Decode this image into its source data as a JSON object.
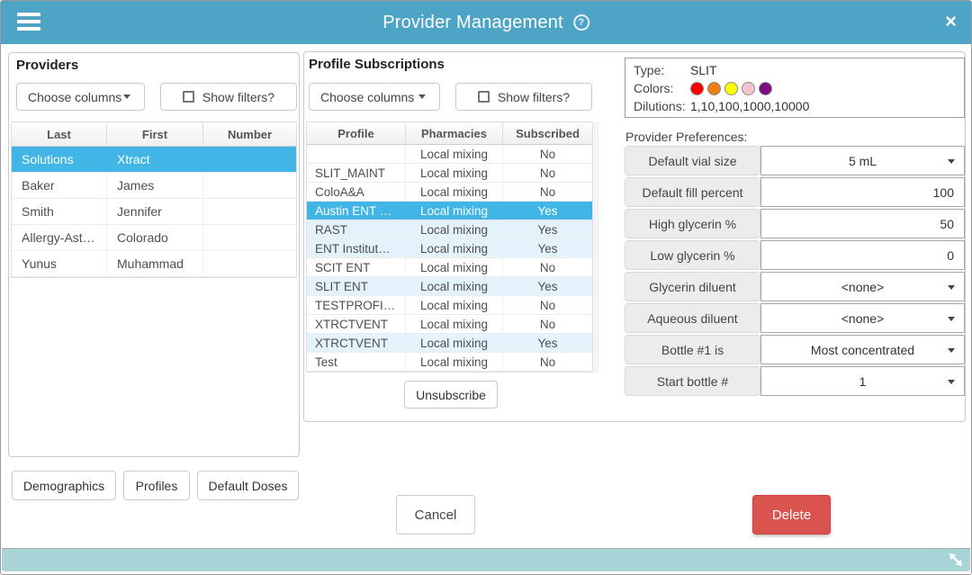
{
  "header": {
    "title": "Provider Management",
    "help_glyph": "?",
    "close_glyph": "×"
  },
  "providers": {
    "title": "Providers",
    "choose_columns_label": "Choose columns",
    "show_filters_label": "Show filters?",
    "columns": [
      {
        "label": "Last"
      },
      {
        "label": "First"
      },
      {
        "label": "Number"
      }
    ],
    "rows": [
      {
        "last": "Solutions",
        "first": "Xtract",
        "number": "",
        "selected": true
      },
      {
        "last": "Baker",
        "first": "James",
        "number": ""
      },
      {
        "last": "Smith",
        "first": "Jennifer",
        "number": ""
      },
      {
        "last": "Allergy-Ast…",
        "first": "Colorado",
        "number": ""
      },
      {
        "last": "Yunus",
        "first": "Muhammad",
        "number": ""
      }
    ],
    "action_buttons": {
      "demographics": "Demographics",
      "profiles": "Profiles",
      "default_doses": "Default Doses"
    }
  },
  "subscriptions": {
    "title": "Profile Subscriptions",
    "choose_columns_label": "Choose columns",
    "show_filters_label": "Show filters?",
    "columns": [
      {
        "label": "Profile"
      },
      {
        "label": "Pharmacies"
      },
      {
        "label": "Subscribed"
      }
    ],
    "rows": [
      {
        "profile": "",
        "pharmacies": "Local mixing",
        "subscribed": "No"
      },
      {
        "profile": "SLIT_MAINT",
        "pharmacies": "Local mixing",
        "subscribed": "No"
      },
      {
        "profile": "ColoA&A",
        "pharmacies": "Local mixing",
        "subscribed": "No"
      },
      {
        "profile": "Austin ENT …",
        "pharmacies": "Local mixing",
        "subscribed": "Yes",
        "selected": true
      },
      {
        "profile": "RAST",
        "pharmacies": "Local mixing",
        "subscribed": "Yes"
      },
      {
        "profile": "ENT Institut…",
        "pharmacies": "Local mixing",
        "subscribed": "Yes"
      },
      {
        "profile": "SCIT ENT",
        "pharmacies": "Local mixing",
        "subscribed": "No"
      },
      {
        "profile": "SLIT ENT",
        "pharmacies": "Local mixing",
        "subscribed": "Yes"
      },
      {
        "profile": "TESTPROFI…",
        "pharmacies": "Local mixing",
        "subscribed": "No"
      },
      {
        "profile": "XTRCTVENT",
        "pharmacies": "Local mixing",
        "subscribed": "No"
      },
      {
        "profile": "XTRCTVENT",
        "pharmacies": "Local mixing",
        "subscribed": "Yes"
      },
      {
        "profile": "Test",
        "pharmacies": "Local mixing",
        "subscribed": "No"
      }
    ],
    "unsubscribe_label": "Unsubscribe"
  },
  "details": {
    "info": {
      "type_label": "Type:",
      "type_value": "SLIT",
      "colors_label": "Colors:",
      "colors": [
        "#fe0000",
        "#f07f13",
        "#fcfc00",
        "#f8c3d0",
        "#7d0d80"
      ],
      "dilutions_label": "Dilutions:",
      "dilutions_value": "1,10,100,1000,10000"
    },
    "preferences_title": "Provider Preferences:",
    "preferences": [
      {
        "label": "Default vial size",
        "value": "5 mL",
        "type": "select"
      },
      {
        "label": "Default fill percent",
        "value": "100",
        "type": "number"
      },
      {
        "label": "High glycerin %",
        "value": "50",
        "type": "number"
      },
      {
        "label": "Low glycerin %",
        "value": "0",
        "type": "number"
      },
      {
        "label": "Glycerin diluent",
        "value": "<none>",
        "type": "select"
      },
      {
        "label": "Aqueous diluent",
        "value": "<none>",
        "type": "select"
      },
      {
        "label": "Bottle #1 is",
        "value": "Most concentrated",
        "type": "select"
      },
      {
        "label": "Start bottle #",
        "value": "1",
        "type": "select"
      }
    ]
  },
  "actions": {
    "cancel": "Cancel",
    "delete": "Delete"
  },
  "colors": {
    "titlebar": "#4da4c4",
    "footer": "#a9d5d8",
    "selected_row": "#41b6e6",
    "subscribed_row": "#e3f2fb",
    "delete_button": "#d9534f"
  }
}
